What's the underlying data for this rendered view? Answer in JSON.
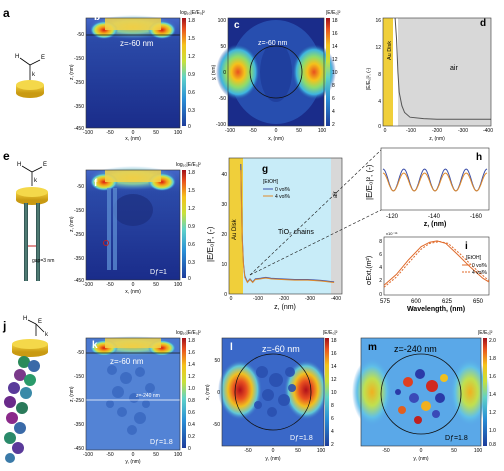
{
  "panels": {
    "a": {
      "letter": "a",
      "labels": {
        "H": "H",
        "E": "E",
        "k": "k"
      }
    },
    "b": {
      "letter": "b",
      "cbar_title": "log₁₀|E/E₀|²",
      "cbar_ticks": [
        "1.8",
        "1.5",
        "1.2",
        "0.9",
        "0.6",
        "0.3",
        "0"
      ],
      "annotation": "z=-60 nm",
      "ylabel": "z, (nm)",
      "xlabel": "x, (nm)",
      "yticks": [
        "-50",
        "-150",
        "-250",
        "-350",
        "-450"
      ],
      "xticks": [
        "-100",
        "-50",
        "0",
        "50",
        "100"
      ]
    },
    "c": {
      "letter": "c",
      "cbar_title": "|E/E₀|²",
      "cbar_ticks": [
        "18",
        "16",
        "14",
        "12",
        "10",
        "8",
        "6",
        "4",
        "2"
      ],
      "annotation": "z=-60 nm",
      "ylabel": "y, (nm)",
      "xlabel": "x, (nm)",
      "yticks": [
        "100",
        "50",
        "0",
        "-50",
        "-100"
      ],
      "xticks": [
        "-100",
        "-50",
        "0",
        "50",
        "100"
      ]
    },
    "d": {
      "letter": "d",
      "ylabel": "|E/E₀|², (-)",
      "xlabel": "z, (nm)",
      "disk_label": "Au Disk",
      "air_label": "air",
      "yticks": [
        "16",
        "12",
        "8",
        "4",
        "0"
      ],
      "xticks": [
        "0",
        "-100",
        "-200",
        "-300",
        "-400"
      ]
    },
    "e": {
      "letter": "e",
      "gap_label": "gap=3 nm",
      "labels": {
        "H": "H",
        "E": "E",
        "k": "k"
      }
    },
    "f": {
      "letter": "f",
      "cbar_title": "log₁₀|E/E₀|²",
      "cbar_ticks": [
        "1.8",
        "1.5",
        "1.2",
        "0.9",
        "0.6",
        "0.3",
        "0"
      ],
      "df": "Dƒ=1",
      "ylabel": "z, (nm)",
      "xlabel": "x, (nm)",
      "yticks": [
        "-50",
        "-150",
        "-250",
        "-350",
        "-450"
      ],
      "xticks": [
        "-100",
        "-50",
        "0",
        "50",
        "100"
      ]
    },
    "g": {
      "letter": "g",
      "ylabel": "|E/E₀|², (-)",
      "xlabel": "z, (nm)",
      "legend_title": "[EtOH]",
      "legend": [
        "0 vol%",
        "4 vol%"
      ],
      "disk_label": "Au Disk",
      "chain_label": "TiO₂ chains",
      "air_label": "air",
      "yticks": [
        "40",
        "30",
        "20",
        "10",
        "0"
      ],
      "xticks": [
        "0",
        "-100",
        "-200",
        "-300",
        "-400"
      ]
    },
    "h": {
      "letter": "h",
      "ylabel": "|E/E₀|², (-)",
      "xlabel": "z, (nm)",
      "xticks": [
        "-120",
        "-140",
        "-160"
      ]
    },
    "i": {
      "letter": "i",
      "ylabel": "σExt,(m²)",
      "xlabel": "Wavelength, (nm)",
      "exp_label": "x10⁻¹⁵",
      "legend_title": "[EtOH]",
      "legend": [
        "0 vol%",
        "4 vol%"
      ],
      "yticks": [
        "8",
        "6",
        "4",
        "2",
        "0"
      ],
      "xticks": [
        "575",
        "600",
        "625",
        "650"
      ]
    },
    "j": {
      "letter": "j",
      "labels": {
        "H": "H",
        "E": "E",
        "k": "k"
      }
    },
    "k": {
      "letter": "k",
      "cbar_title": "log₁₀|E/E₀|²",
      "cbar_ticks": [
        "1.8",
        "1.6",
        "1.4",
        "1.2",
        "1.0",
        "0.8",
        "0.6",
        "0.4",
        "0.2",
        "0"
      ],
      "annotation": "z=-60 nm",
      "annotation2": "z=-240 nm",
      "df": "Dƒ=1.8",
      "ylabel": "z, (nm)",
      "xlabel": "y, (nm)",
      "yticks": [
        "-50",
        "-150",
        "-250",
        "-350",
        "-450"
      ],
      "xticks": [
        "-100",
        "-50",
        "0",
        "50",
        "100"
      ]
    },
    "l": {
      "letter": "l",
      "annotation": "z=-60 nm",
      "df": "Dƒ=1.8",
      "cbar_title": "|E/E₀|²",
      "cbar_ticks": [
        "18",
        "16",
        "14",
        "12",
        "10",
        "8",
        "6",
        "4",
        "2"
      ],
      "ylabel": "x, (nm)",
      "xlabel": "y, (nm)",
      "yticks": [
        "50",
        "0",
        "-50"
      ],
      "xticks": [
        "-50",
        "0",
        "50",
        "100"
      ]
    },
    "m": {
      "letter": "m",
      "annotation": "z=-240 nm",
      "df": "Dƒ=1.8",
      "cbar_title": "|E/E₀|²",
      "cbar_ticks": [
        "2.0",
        "1.8",
        "1.6",
        "1.4",
        "1.2",
        "1.0",
        "0.8"
      ],
      "xlabel": "y, (nm)",
      "xticks": [
        "-50",
        "0",
        "50",
        "100"
      ]
    }
  },
  "chart_data": [
    {
      "type": "line",
      "panel": "d",
      "xlabel": "z, (nm)",
      "ylabel": "|E/E₀|², (-)",
      "xlim": [
        0,
        -400
      ],
      "ylim": [
        0,
        16
      ],
      "series": [
        {
          "x": [
            -45,
            -50,
            -55,
            -60,
            -70,
            -80,
            -100,
            -150,
            -200,
            -300,
            -400
          ],
          "values": [
            16,
            13,
            8,
            5,
            3,
            2,
            1.3,
            1.1,
            1.0,
            1.0,
            1.0
          ]
        }
      ]
    },
    {
      "type": "line",
      "panel": "g",
      "xlabel": "z, (nm)",
      "ylabel": "|E/E₀|², (-)",
      "xlim": [
        0,
        -430
      ],
      "ylim": [
        0,
        45
      ],
      "series": [
        {
          "name": "0 vol%",
          "color": "#3c4fa8",
          "x": [
            -45,
            -50,
            -55,
            -60,
            -70,
            -80,
            -90,
            -100,
            -120,
            -140,
            -160,
            -200,
            -250,
            -300,
            -350,
            -400
          ],
          "values": [
            43,
            20,
            10,
            6,
            4,
            5,
            4,
            5,
            5.2,
            5.5,
            5.2,
            5,
            4.8,
            4.8,
            4.5,
            4
          ]
        },
        {
          "name": "4 vol%",
          "color": "#e08a2a",
          "x": [
            -45,
            -50,
            -55,
            -60,
            -70,
            -80,
            -90,
            -100,
            -120,
            -140,
            -160,
            -200,
            -250,
            -300,
            -350,
            -400
          ],
          "values": [
            41,
            19,
            9.5,
            5.5,
            3.8,
            4.8,
            3.8,
            4.8,
            5,
            5.3,
            5,
            4.8,
            4.6,
            4.6,
            4.3,
            3.8
          ]
        }
      ]
    },
    {
      "type": "line",
      "panel": "i",
      "xlabel": "Wavelength, (nm)",
      "ylabel": "σExt,(m²)",
      "xlim": [
        575,
        660
      ],
      "ylim": [
        0,
        9
      ],
      "series": [
        {
          "name": "0 vol%",
          "color": "#e06a2a",
          "x": [
            575,
            585,
            595,
            605,
            612,
            618,
            625,
            635,
            645,
            655,
            660
          ],
          "values": [
            1.5,
            3.2,
            5.5,
            7.5,
            8.2,
            8.4,
            8.0,
            6.2,
            4.3,
            2.6,
            2.0
          ]
        },
        {
          "name": "4 vol%",
          "color": "#e06a2a",
          "dashed": true,
          "x": [
            575,
            585,
            595,
            605,
            612,
            620,
            627,
            637,
            647,
            657,
            660
          ],
          "values": [
            1.2,
            2.8,
            5.0,
            7.1,
            8.0,
            8.3,
            8.0,
            6.3,
            4.4,
            2.7,
            2.2
          ]
        }
      ]
    }
  ]
}
